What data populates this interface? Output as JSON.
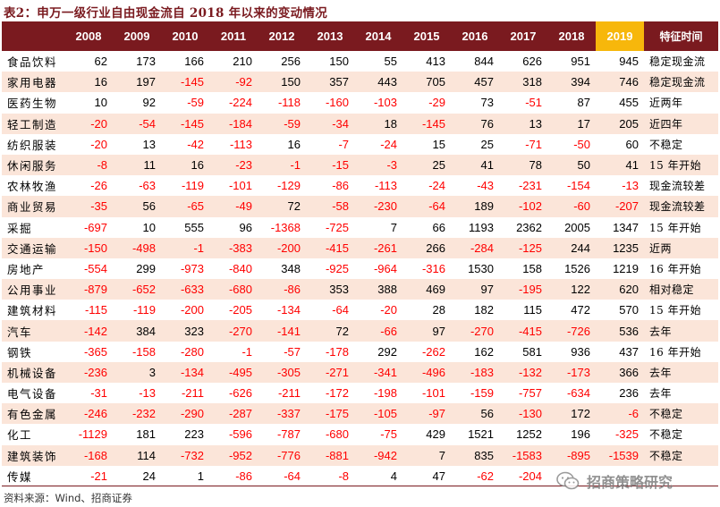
{
  "title": "表2：申万一级行业自由现金流自 2018 年以来的变动情况",
  "columns": [
    "",
    "2008",
    "2009",
    "2010",
    "2011",
    "2012",
    "2013",
    "2014",
    "2015",
    "2016",
    "2017",
    "2018",
    "2019",
    "特征时间"
  ],
  "highlight_column": "2019",
  "colors": {
    "header_bg": "#7a1a1f",
    "highlight_bg": "#f7b70b",
    "stripe_bg": "#fbe5d9",
    "negative": "#ff0000"
  },
  "rows": [
    {
      "industry": "食品饮料",
      "values": [
        "62",
        "173",
        "166",
        "210",
        "256",
        "150",
        "55",
        "413",
        "844",
        "626",
        "951",
        "945"
      ],
      "note": "稳定现金流"
    },
    {
      "industry": "家用电器",
      "values": [
        "16",
        "197",
        "-145",
        "-92",
        "150",
        "357",
        "443",
        "705",
        "457",
        "318",
        "394",
        "746"
      ],
      "note": "稳定现金流"
    },
    {
      "industry": "医药生物",
      "values": [
        "10",
        "92",
        "-59",
        "-224",
        "-118",
        "-160",
        "-103",
        "-29",
        "73",
        "-51",
        "87",
        "455"
      ],
      "note": "近两年"
    },
    {
      "industry": "轻工制造",
      "values": [
        "-20",
        "-54",
        "-145",
        "-184",
        "-59",
        "-34",
        "18",
        "-145",
        "76",
        "13",
        "17",
        "205"
      ],
      "note": "近四年"
    },
    {
      "industry": "纺织服装",
      "values": [
        "-20",
        "13",
        "-42",
        "-113",
        "16",
        "-7",
        "-24",
        "15",
        "25",
        "-71",
        "-50",
        "60"
      ],
      "note": "不稳定"
    },
    {
      "industry": "休闲服务",
      "values": [
        "-8",
        "11",
        "16",
        "-23",
        "-1",
        "-15",
        "-3",
        "25",
        "41",
        "78",
        "50",
        "41"
      ],
      "note": "15 年开始"
    },
    {
      "industry": "农林牧渔",
      "values": [
        "-26",
        "-63",
        "-119",
        "-101",
        "-129",
        "-86",
        "-113",
        "-24",
        "-43",
        "-231",
        "-154",
        "-13"
      ],
      "note": "现金流较差"
    },
    {
      "industry": "商业贸易",
      "values": [
        "-35",
        "56",
        "-65",
        "-49",
        "72",
        "-58",
        "-230",
        "-64",
        "189",
        "-102",
        "-60",
        "-207"
      ],
      "note": "现金流较差"
    },
    {
      "industry": "采掘",
      "values": [
        "-697",
        "10",
        "555",
        "96",
        "-1368",
        "-725",
        "7",
        "66",
        "1193",
        "2362",
        "2005",
        "1347"
      ],
      "note": "15 年开始"
    },
    {
      "industry": "交通运输",
      "values": [
        "-150",
        "-498",
        "-1",
        "-383",
        "-200",
        "-415",
        "-261",
        "266",
        "-284",
        "-125",
        "244",
        "1235"
      ],
      "note": "近两"
    },
    {
      "industry": "房地产",
      "values": [
        "-554",
        "299",
        "-973",
        "-840",
        "348",
        "-925",
        "-964",
        "-316",
        "1530",
        "158",
        "1526",
        "1219"
      ],
      "note": "16 年开始"
    },
    {
      "industry": "公用事业",
      "values": [
        "-879",
        "-652",
        "-633",
        "-680",
        "-86",
        "353",
        "388",
        "469",
        "97",
        "-195",
        "122",
        "620"
      ],
      "note": "相对稳定"
    },
    {
      "industry": "建筑材料",
      "values": [
        "-115",
        "-119",
        "-200",
        "-205",
        "-134",
        "-64",
        "-20",
        "28",
        "182",
        "115",
        "472",
        "570"
      ],
      "note": "15 年开始"
    },
    {
      "industry": "汽车",
      "values": [
        "-142",
        "384",
        "323",
        "-270",
        "-141",
        "72",
        "-66",
        "97",
        "-270",
        "-415",
        "-726",
        "536"
      ],
      "note": "去年"
    },
    {
      "industry": "钢铁",
      "values": [
        "-365",
        "-158",
        "-280",
        "-1",
        "-57",
        "-178",
        "292",
        "-262",
        "162",
        "581",
        "936",
        "437"
      ],
      "note": "16 年开始"
    },
    {
      "industry": "机械设备",
      "values": [
        "-236",
        "3",
        "-134",
        "-495",
        "-305",
        "-271",
        "-341",
        "-496",
        "-183",
        "-132",
        "-173",
        "366"
      ],
      "note": "去年"
    },
    {
      "industry": "电气设备",
      "values": [
        "-31",
        "-13",
        "-211",
        "-626",
        "-211",
        "-172",
        "-198",
        "-101",
        "-159",
        "-757",
        "-634",
        "236"
      ],
      "note": "去年"
    },
    {
      "industry": "有色金属",
      "values": [
        "-246",
        "-232",
        "-290",
        "-287",
        "-337",
        "-175",
        "-105",
        "-97",
        "56",
        "-130",
        "172",
        "-6"
      ],
      "note": "不稳定"
    },
    {
      "industry": "化工",
      "values": [
        "-1129",
        "181",
        "223",
        "-596",
        "-787",
        "-680",
        "-75",
        "429",
        "1521",
        "1252",
        "196",
        "-325"
      ],
      "note": "不稳定"
    },
    {
      "industry": "建筑装饰",
      "values": [
        "-168",
        "114",
        "-732",
        "-952",
        "-776",
        "-881",
        "-942",
        "7",
        "835",
        "-1583",
        "-895",
        "-1539"
      ],
      "note": "不稳定"
    },
    {
      "industry": "传媒",
      "values": [
        "-21",
        "24",
        "1",
        "-86",
        "-64",
        "-8",
        "4",
        "47",
        "-62",
        "-204",
        "",
        ""
      ],
      "note": ""
    }
  ],
  "source": "资料来源：Wind、招商证券",
  "watermark": {
    "text": "招商策略研究",
    "icon": "wechat-icon"
  }
}
